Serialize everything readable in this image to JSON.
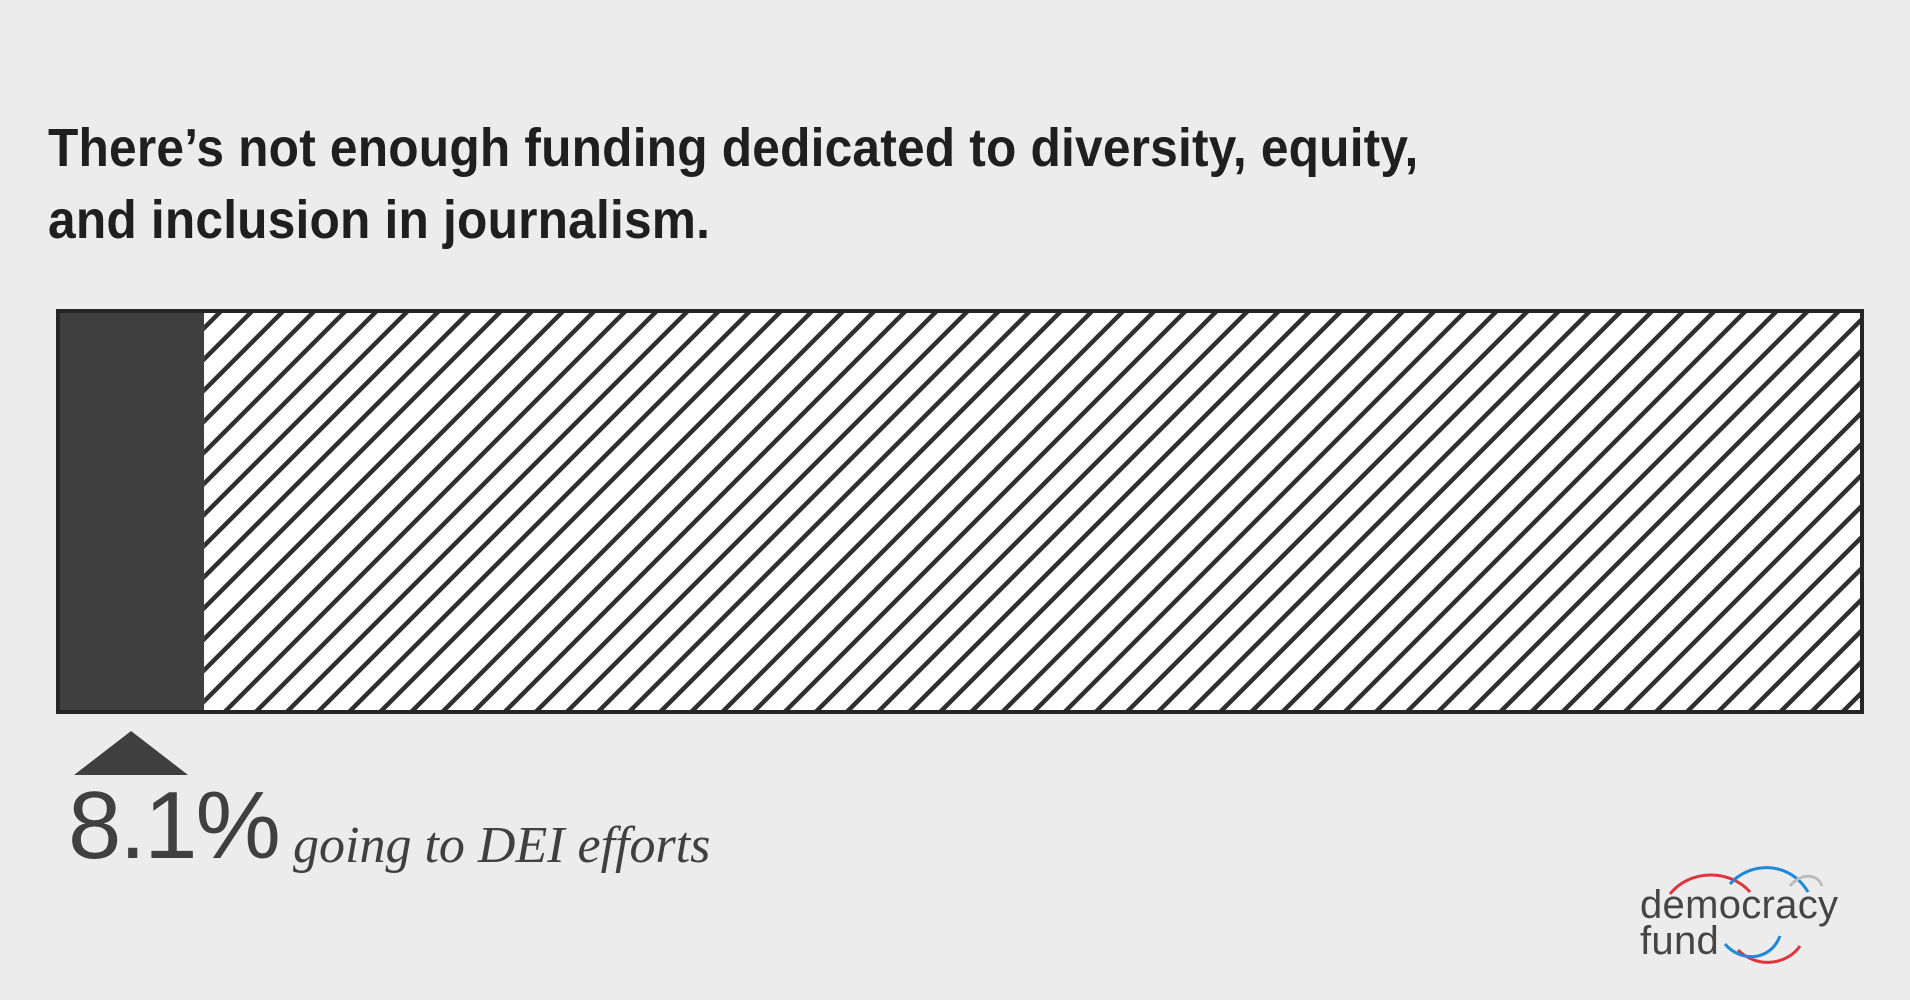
{
  "title": "There’s not enough funding dedicated to diversity, equity, and inclusion in journalism.",
  "chart_data": {
    "type": "bar",
    "orientation": "horizontal",
    "stacked": true,
    "title": "There’s not enough funding dedicated to diversity, equity, and inclusion in journalism.",
    "xlim": [
      0,
      100
    ],
    "unit": "%",
    "series": [
      {
        "value": 8.1,
        "fill": "solid",
        "color": "#3f3f3f"
      },
      {
        "value": 91.9,
        "fill": "hatched",
        "color": "#ffffff"
      }
    ],
    "annotation": {
      "value_text": "8.1%",
      "caption": "going to DEI efforts",
      "marker": "triangle-up"
    },
    "grid": false,
    "legend": "none"
  },
  "logo": {
    "line1": "democracy",
    "line2": "fund",
    "colors": {
      "text": "#454545",
      "red": "#e0343c",
      "blue": "#1f88d9",
      "gray": "#bdbdbd"
    }
  },
  "colors": {
    "background": "#ececec",
    "bar_dark": "#3f3f3f",
    "bar_outline": "#252525",
    "hatch": "#2f2f2f"
  }
}
